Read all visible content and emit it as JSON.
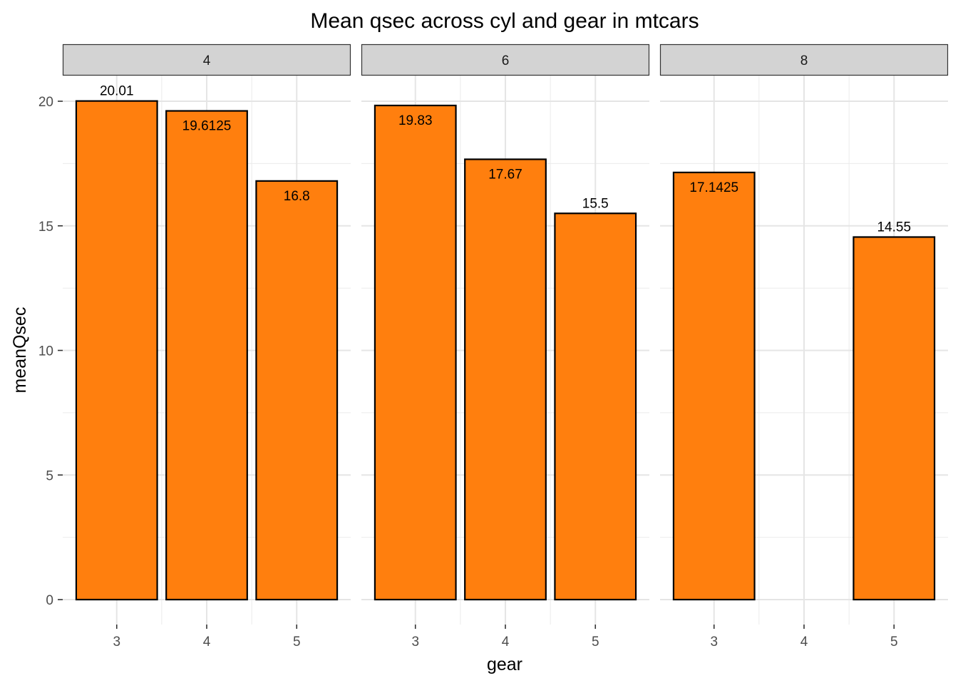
{
  "chart_data": {
    "type": "bar",
    "title": "Mean qsec across cyl and gear in mtcars",
    "xlabel": "gear",
    "ylabel": "meanQsec",
    "ylim": [
      0,
      21.2
    ],
    "y_ticks": [
      0,
      5,
      10,
      15,
      20
    ],
    "x_categories": [
      "3",
      "4",
      "5"
    ],
    "bar_fill": "#FF7F0E",
    "bar_outline": "#000000",
    "strip_fill": "#D3D3D3",
    "grid": true,
    "panels": [
      {
        "facet": "4",
        "bars": [
          {
            "gear": "3",
            "value": 20.01,
            "label": "20.01",
            "label_position": "above"
          },
          {
            "gear": "4",
            "value": 19.6125,
            "label": "19.6125",
            "label_position": "inside"
          },
          {
            "gear": "5",
            "value": 16.8,
            "label": "16.8",
            "label_position": "inside"
          }
        ]
      },
      {
        "facet": "6",
        "bars": [
          {
            "gear": "3",
            "value": 19.83,
            "label": "19.83",
            "label_position": "inside"
          },
          {
            "gear": "4",
            "value": 17.67,
            "label": "17.67",
            "label_position": "inside"
          },
          {
            "gear": "5",
            "value": 15.5,
            "label": "15.5",
            "label_position": "above"
          }
        ]
      },
      {
        "facet": "8",
        "bars": [
          {
            "gear": "3",
            "value": 17.1425,
            "label": "17.1425",
            "label_position": "inside"
          },
          {
            "gear": "5",
            "value": 14.55,
            "label": "14.55",
            "label_position": "above"
          }
        ]
      }
    ]
  }
}
